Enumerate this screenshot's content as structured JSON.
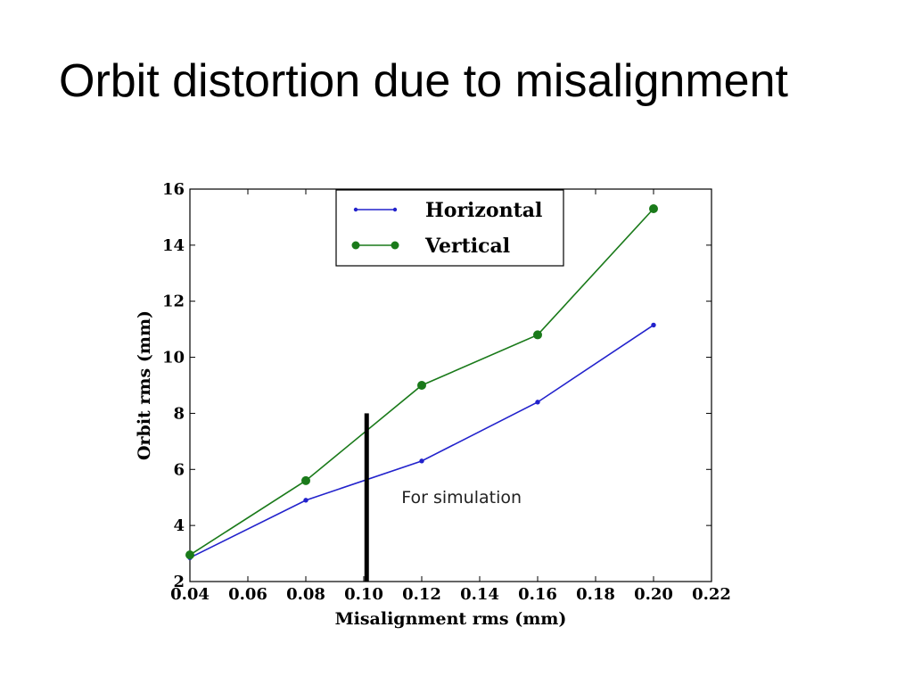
{
  "slide": {
    "title": "Orbit distortion due to misalignment"
  },
  "chart_data": {
    "type": "line",
    "xlabel": "Misalignment rms (mm)",
    "ylabel": "Orbit rms (mm)",
    "xlim": [
      0.04,
      0.22
    ],
    "ylim": [
      2,
      16
    ],
    "x_ticks": [
      0.04,
      0.06,
      0.08,
      0.1,
      0.12,
      0.14,
      0.16,
      0.18,
      0.2,
      0.22
    ],
    "x_tick_labels": [
      "0.04",
      "0.06",
      "0.08",
      "0.10",
      "0.12",
      "0.14",
      "0.16",
      "0.18",
      "0.20",
      "0.22"
    ],
    "y_ticks": [
      2,
      4,
      6,
      8,
      10,
      12,
      14,
      16
    ],
    "y_tick_labels": [
      "2",
      "4",
      "6",
      "8",
      "10",
      "12",
      "14",
      "16"
    ],
    "grid": false,
    "legend_position": "top-center",
    "series": [
      {
        "name": "Horizontal",
        "color": "#2222cc",
        "marker": "small-dot",
        "x": [
          0.04,
          0.08,
          0.12,
          0.16,
          0.2
        ],
        "y": [
          2.85,
          4.9,
          6.3,
          8.4,
          11.15
        ]
      },
      {
        "name": "Vertical",
        "color": "#1a7a1a",
        "marker": "circle",
        "x": [
          0.04,
          0.08,
          0.12,
          0.16,
          0.2
        ],
        "y": [
          2.95,
          5.6,
          9.0,
          10.8,
          15.3
        ]
      }
    ],
    "annotations": [
      {
        "type": "vertical-bar",
        "x": 0.101,
        "y_from": 2,
        "y_to": 8,
        "color": "#000000"
      },
      {
        "type": "text",
        "text": "For simulation",
        "x": 0.113,
        "y": 4.8
      }
    ]
  }
}
